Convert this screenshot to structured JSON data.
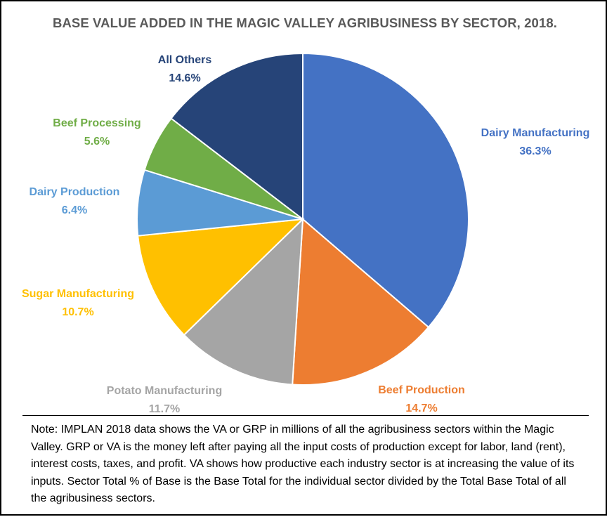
{
  "chart_data": {
    "type": "pie",
    "title": "BASE VALUE ADDED IN THE MAGIC VALLEY AGRIBUSINESS BY SECTOR, 2018.",
    "slices": [
      {
        "name": "Dairy Manufacturing",
        "value": 36.3,
        "label": "36.3%",
        "color": "#4472C4",
        "label_color": "#4472C4"
      },
      {
        "name": "Beef Production",
        "value": 14.7,
        "label": "14.7%",
        "color": "#ED7D31",
        "label_color": "#ED7D31"
      },
      {
        "name": "Potato Manufacturing",
        "value": 11.7,
        "label": "11.7%",
        "color": "#A5A5A5",
        "label_color": "#A5A5A5"
      },
      {
        "name": "Sugar Manufacturing",
        "value": 10.7,
        "label": "10.7%",
        "color": "#FFC000",
        "label_color": "#FFC000"
      },
      {
        "name": "Dairy Production",
        "value": 6.4,
        "label": "6.4%",
        "color": "#5B9BD5",
        "label_color": "#5B9BD5"
      },
      {
        "name": "Beef Processing",
        "value": 5.6,
        "label": "5.6%",
        "color": "#70AD47",
        "label_color": "#70AD47"
      },
      {
        "name": "All Others",
        "value": 14.6,
        "label": "14.6%",
        "color": "#264478",
        "label_color": "#264478"
      }
    ],
    "start": "12 o'clock",
    "direction": "clockwise"
  },
  "note": "Note: IMPLAN 2018 data shows the VA or GRP in millions of all the agribusiness sectors within the Magic Valley. GRP or VA is the money left after paying all the input costs of production except for labor, land (rent), interest costs, taxes, and profit. VA shows how productive each industry sector is at increasing the value of its inputs. Sector Total % of Base is the Base Total for the individual sector divided by the Total Base Total of all the agribusiness sectors."
}
